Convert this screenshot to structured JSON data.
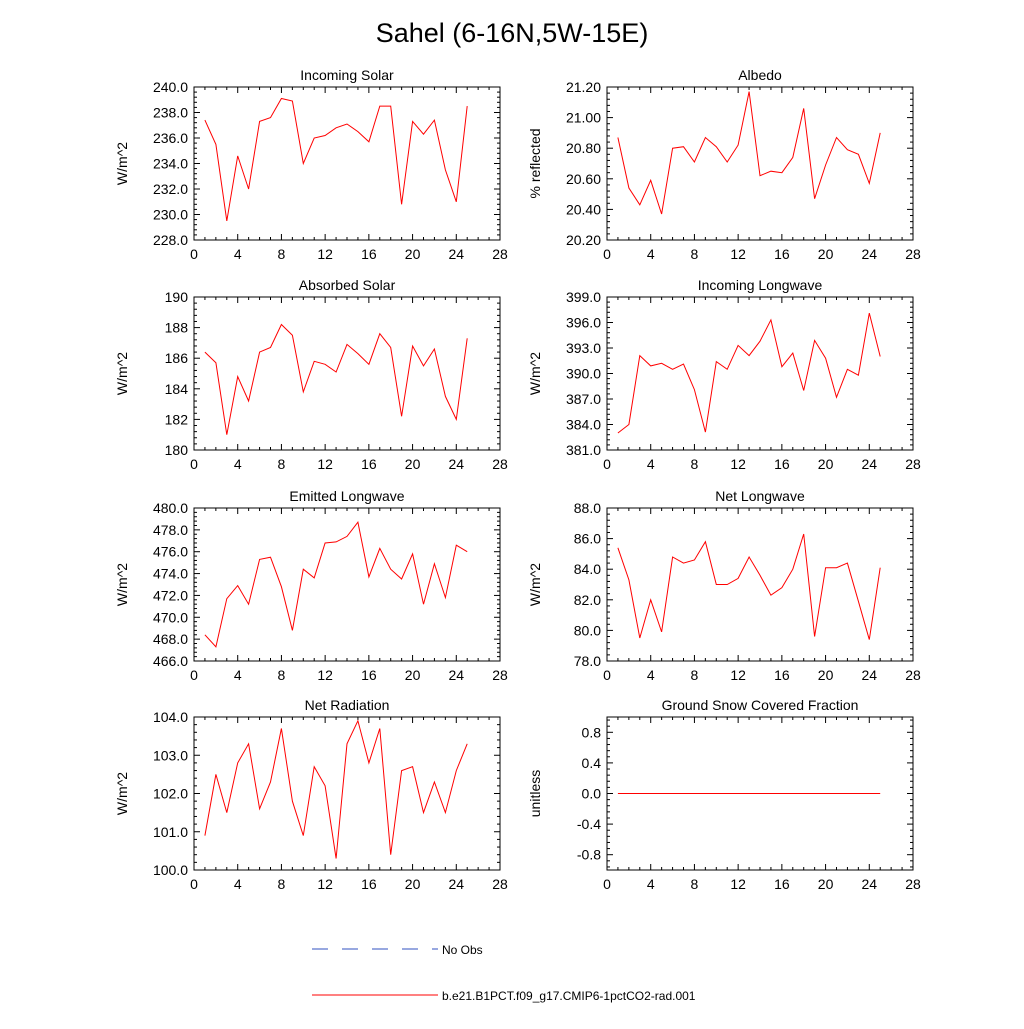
{
  "title": "Sahel (6-16N,5W-15E)",
  "colors": {
    "series": "#ff0000",
    "no_obs": "#3050c0",
    "axis": "#000000"
  },
  "legend": {
    "entries": [
      {
        "label": "No Obs",
        "style": "dashed",
        "color": "#3050c0"
      },
      {
        "label": "b.e21.B1PCT.f09_g17.CMIP6-1pctCO2-rad.001",
        "style": "solid",
        "color": "#ff0000"
      }
    ]
  },
  "chart_data": [
    {
      "type": "line",
      "title": "Incoming Solar",
      "ylabel": "W/m^2",
      "xlim": [
        0,
        28
      ],
      "xticks": [
        "0",
        "4",
        "8",
        "12",
        "16",
        "20",
        "24",
        "28"
      ],
      "ylim": [
        228.0,
        240.0
      ],
      "yticks": [
        "228.0",
        "230.0",
        "232.0",
        "234.0",
        "236.0",
        "238.0",
        "240.0"
      ],
      "x": [
        1,
        2,
        3,
        4,
        5,
        6,
        7,
        8,
        9,
        10,
        11,
        12,
        13,
        14,
        15,
        16,
        17,
        18,
        19,
        20,
        21,
        22,
        23,
        24,
        25
      ],
      "series": [
        {
          "name": "b.e21.B1PCT.f09_g17.CMIP6-1pctCO2-rad.001",
          "values": [
            237.4,
            235.5,
            229.5,
            234.6,
            232.0,
            237.3,
            237.6,
            239.1,
            238.9,
            234.0,
            236.0,
            236.2,
            236.8,
            237.1,
            236.5,
            235.7,
            238.5,
            238.5,
            230.8,
            237.3,
            236.3,
            237.4,
            233.5,
            231.0,
            238.5
          ]
        }
      ]
    },
    {
      "type": "line",
      "title": "Albedo",
      "ylabel": "% reflected",
      "xlim": [
        0,
        28
      ],
      "xticks": [
        "0",
        "4",
        "8",
        "12",
        "16",
        "20",
        "24",
        "28"
      ],
      "ylim": [
        20.2,
        21.2
      ],
      "yticks": [
        "20.20",
        "20.40",
        "20.60",
        "20.80",
        "21.00",
        "21.20"
      ],
      "x": [
        1,
        2,
        3,
        4,
        5,
        6,
        7,
        8,
        9,
        10,
        11,
        12,
        13,
        14,
        15,
        16,
        17,
        18,
        19,
        20,
        21,
        22,
        23,
        24,
        25
      ],
      "series": [
        {
          "name": "b.e21.B1PCT.f09_g17.CMIP6-1pctCO2-rad.001",
          "values": [
            20.87,
            20.54,
            20.43,
            20.59,
            20.37,
            20.8,
            20.81,
            20.71,
            20.87,
            20.81,
            20.71,
            20.82,
            21.17,
            20.62,
            20.65,
            20.64,
            20.74,
            21.06,
            20.47,
            20.69,
            20.87,
            20.79,
            20.76,
            20.57,
            20.9
          ]
        }
      ]
    },
    {
      "type": "line",
      "title": "Absorbed Solar",
      "ylabel": "W/m^2",
      "xlim": [
        0,
        28
      ],
      "xticks": [
        "0",
        "4",
        "8",
        "12",
        "16",
        "20",
        "24",
        "28"
      ],
      "ylim": [
        180,
        190
      ],
      "yticks": [
        "180",
        "182",
        "184",
        "186",
        "188",
        "190"
      ],
      "x": [
        1,
        2,
        3,
        4,
        5,
        6,
        7,
        8,
        9,
        10,
        11,
        12,
        13,
        14,
        15,
        16,
        17,
        18,
        19,
        20,
        21,
        22,
        23,
        24,
        25
      ],
      "series": [
        {
          "name": "b.e21.B1PCT.f09_g17.CMIP6-1pctCO2-rad.001",
          "values": [
            186.4,
            185.7,
            181.0,
            184.8,
            183.2,
            186.4,
            186.7,
            188.2,
            187.5,
            183.8,
            185.8,
            185.6,
            185.1,
            186.9,
            186.3,
            185.6,
            187.6,
            186.7,
            182.2,
            186.8,
            185.5,
            186.6,
            183.5,
            182.0,
            187.3
          ]
        }
      ]
    },
    {
      "type": "line",
      "title": "Incoming Longwave",
      "ylabel": "W/m^2",
      "xlim": [
        0,
        28
      ],
      "xticks": [
        "0",
        "4",
        "8",
        "12",
        "16",
        "20",
        "24",
        "28"
      ],
      "ylim": [
        381.0,
        399.0
      ],
      "yticks": [
        "381.0",
        "384.0",
        "387.0",
        "390.0",
        "393.0",
        "396.0",
        "399.0"
      ],
      "x": [
        1,
        2,
        3,
        4,
        5,
        6,
        7,
        8,
        9,
        10,
        11,
        12,
        13,
        14,
        15,
        16,
        17,
        18,
        19,
        20,
        21,
        22,
        23,
        24,
        25
      ],
      "series": [
        {
          "name": "b.e21.B1PCT.f09_g17.CMIP6-1pctCO2-rad.001",
          "values": [
            383.0,
            384.0,
            392.1,
            390.9,
            391.2,
            390.5,
            391.1,
            388.1,
            383.1,
            391.4,
            390.5,
            393.3,
            392.1,
            393.8,
            396.3,
            390.8,
            392.4,
            388.0,
            393.9,
            391.8,
            387.2,
            390.5,
            389.8,
            397.1,
            392.0
          ]
        }
      ]
    },
    {
      "type": "line",
      "title": "Emitted Longwave",
      "ylabel": "W/m^2",
      "xlim": [
        0,
        28
      ],
      "xticks": [
        "0",
        "4",
        "8",
        "12",
        "16",
        "20",
        "24",
        "28"
      ],
      "ylim": [
        466.0,
        480.0
      ],
      "yticks": [
        "466.0",
        "468.0",
        "470.0",
        "472.0",
        "474.0",
        "476.0",
        "478.0",
        "480.0"
      ],
      "x": [
        1,
        2,
        3,
        4,
        5,
        6,
        7,
        8,
        9,
        10,
        11,
        12,
        13,
        14,
        15,
        16,
        17,
        18,
        19,
        20,
        21,
        22,
        23,
        24,
        25
      ],
      "series": [
        {
          "name": "b.e21.B1PCT.f09_g17.CMIP6-1pctCO2-rad.001",
          "values": [
            468.4,
            467.3,
            471.7,
            472.9,
            471.2,
            475.3,
            475.5,
            472.8,
            468.8,
            474.4,
            473.6,
            476.8,
            476.9,
            477.4,
            478.7,
            473.7,
            476.3,
            474.4,
            473.5,
            475.8,
            471.2,
            474.9,
            471.8,
            476.6,
            476.0
          ]
        }
      ]
    },
    {
      "type": "line",
      "title": "Net Longwave",
      "ylabel": "W/m^2",
      "xlim": [
        0,
        28
      ],
      "xticks": [
        "0",
        "4",
        "8",
        "12",
        "16",
        "20",
        "24",
        "28"
      ],
      "ylim": [
        78.0,
        88.0
      ],
      "yticks": [
        "78.0",
        "80.0",
        "82.0",
        "84.0",
        "86.0",
        "88.0"
      ],
      "x": [
        1,
        2,
        3,
        4,
        5,
        6,
        7,
        8,
        9,
        10,
        11,
        12,
        13,
        14,
        15,
        16,
        17,
        18,
        19,
        20,
        21,
        22,
        23,
        24,
        25
      ],
      "series": [
        {
          "name": "b.e21.B1PCT.f09_g17.CMIP6-1pctCO2-rad.001",
          "values": [
            85.4,
            83.3,
            79.5,
            82.0,
            79.9,
            84.8,
            84.4,
            84.6,
            85.8,
            83.0,
            83.0,
            83.4,
            84.8,
            83.6,
            82.3,
            82.8,
            84.0,
            86.3,
            79.6,
            84.1,
            84.1,
            84.4,
            81.9,
            79.4,
            84.1
          ]
        }
      ]
    },
    {
      "type": "line",
      "title": "Net Radiation",
      "ylabel": "W/m^2",
      "xlim": [
        0,
        28
      ],
      "xticks": [
        "0",
        "4",
        "8",
        "12",
        "16",
        "20",
        "24",
        "28"
      ],
      "ylim": [
        100.0,
        104.0
      ],
      "yticks": [
        "100.0",
        "101.0",
        "102.0",
        "103.0",
        "104.0"
      ],
      "x": [
        1,
        2,
        3,
        4,
        5,
        6,
        7,
        8,
        9,
        10,
        11,
        12,
        13,
        14,
        15,
        16,
        17,
        18,
        19,
        20,
        21,
        22,
        23,
        24,
        25
      ],
      "series": [
        {
          "name": "b.e21.B1PCT.f09_g17.CMIP6-1pctCO2-rad.001",
          "values": [
            100.9,
            102.5,
            101.5,
            102.8,
            103.3,
            101.6,
            102.3,
            103.7,
            101.8,
            100.9,
            102.7,
            102.2,
            100.3,
            103.3,
            103.9,
            102.8,
            103.7,
            100.4,
            102.6,
            102.7,
            101.5,
            102.3,
            101.5,
            102.6,
            103.3
          ]
        }
      ]
    },
    {
      "type": "line",
      "title": "Ground Snow Covered Fraction",
      "ylabel": "unitless",
      "xlim": [
        0,
        28
      ],
      "xticks": [
        "0",
        "4",
        "8",
        "12",
        "16",
        "20",
        "24",
        "28"
      ],
      "ylim": [
        -1.0,
        1.0
      ],
      "yticks": [
        "-0.8",
        "-0.4",
        "0.0",
        "0.4",
        "0.8"
      ],
      "yticks_values": [
        -0.8,
        -0.4,
        0.0,
        0.4,
        0.8
      ],
      "x": [
        1,
        2,
        3,
        4,
        5,
        6,
        7,
        8,
        9,
        10,
        11,
        12,
        13,
        14,
        15,
        16,
        17,
        18,
        19,
        20,
        21,
        22,
        23,
        24,
        25
      ],
      "series": [
        {
          "name": "b.e21.B1PCT.f09_g17.CMIP6-1pctCO2-rad.001",
          "values": [
            0,
            0,
            0,
            0,
            0,
            0,
            0,
            0,
            0,
            0,
            0,
            0,
            0,
            0,
            0,
            0,
            0,
            0,
            0,
            0,
            0,
            0,
            0,
            0,
            0
          ]
        }
      ]
    }
  ]
}
